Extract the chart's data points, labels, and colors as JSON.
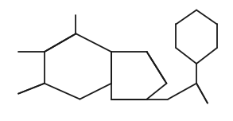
{
  "bg_color": "#ffffff",
  "line_color": "#1a1a1a",
  "line_width": 1.3,
  "dbo": 0.018
}
